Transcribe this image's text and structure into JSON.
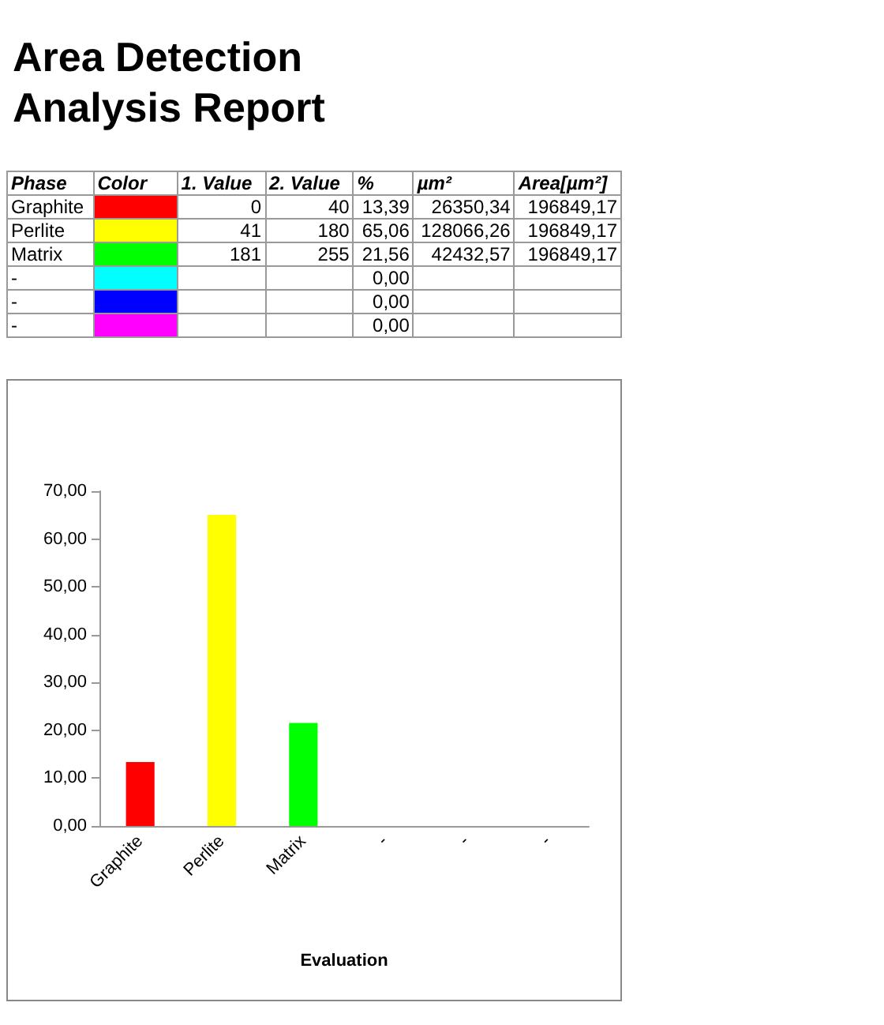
{
  "chart_data": [
    {
      "type": "other",
      "title": "Area Detection Analysis Report",
      "annotations": [
        "Phase",
        "Color",
        "1. Value",
        "2. Value",
        "%",
        "µm²",
        "Area[µm²]",
        "Graphite",
        "0",
        "40",
        "13,39",
        "26350,34",
        "196849,17",
        "Perlite",
        "41",
        "180",
        "65,06",
        "128066,26",
        "196849,17",
        "Matrix",
        "181",
        "255",
        "21,56",
        "42432,57",
        "196849,17",
        "-",
        "0,00",
        "-",
        "0,00",
        "-",
        "0,00"
      ]
    },
    {
      "type": "bar",
      "xlabel": "Evaluation",
      "categories": [
        "Graphite",
        "Perlite",
        "Matrix",
        "-",
        "-",
        "-"
      ],
      "values": [
        13.39,
        65.06,
        21.56,
        0,
        0,
        0
      ],
      "colors": [
        "#ff0000",
        "#ffff00",
        "#00ff00",
        "#00ffff",
        "#0000ff",
        "#ff00ff"
      ],
      "ylim": [
        0,
        70
      ],
      "yticks": [
        {
          "value": 0,
          "label": "0,00"
        },
        {
          "value": 10,
          "label": "10,00"
        },
        {
          "value": 20,
          "label": "20,00"
        },
        {
          "value": 30,
          "label": "30,00"
        },
        {
          "value": 40,
          "label": "40,00"
        },
        {
          "value": 50,
          "label": "50,00"
        },
        {
          "value": 60,
          "label": "60,00"
        },
        {
          "value": 70,
          "label": "70,00"
        }
      ],
      "grid": false
    }
  ]
}
